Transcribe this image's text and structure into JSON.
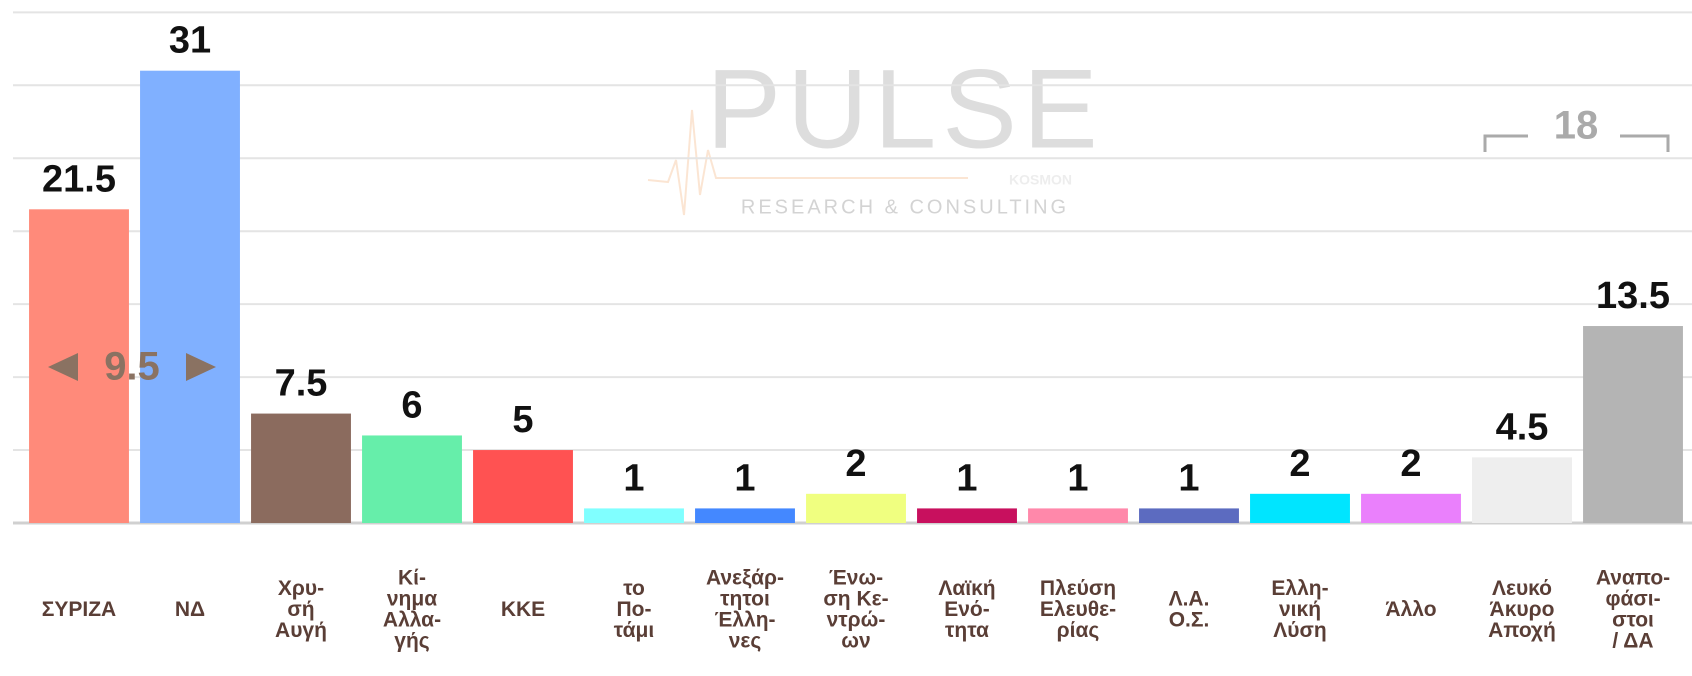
{
  "chart_data": {
    "type": "bar",
    "categories": [
      "ΣΥΡΙΖΑ",
      "ΝΔ",
      "Χρυ-\nσή\nΑυγή",
      "Κί-\nνημα\nΑλλα-\nγής",
      "ΚΚΕ",
      "το\nΠο-\nτάμι",
      "Ανεξάρ-\nτητοι\nΈλλη-\nνες",
      "Ένω-\nση Κε-\nντρώ-\nων",
      "Λαϊκή\nΕνό-\nτητα",
      "Πλεύση\nΕλευθε-\nρίας",
      "Λ.Α.\nΟ.Σ.",
      "Ελλη-\nνική\nΛύση",
      "Άλλο",
      "Λευκό\nΆκυρο\nΑποχή",
      "Αναπο-\nφάσι-\nστοι\n/ ΔΑ"
    ],
    "values": [
      21.5,
      31,
      7.5,
      6,
      5,
      1,
      1,
      2,
      1,
      1,
      1,
      2,
      2,
      4.5,
      13.5
    ],
    "colors": [
      "#ff8a7a",
      "#80b0ff",
      "#8b6b5e",
      "#66eeaa",
      "#ff5252",
      "#80ffff",
      "#4488ff",
      "#f0ff80",
      "#c8105e",
      "#ff88aa",
      "#5c6bc0",
      "#00e5ff",
      "#ea80fc",
      "#eeeeee",
      "#b4b4b4"
    ],
    "ylim": [
      0,
      35.4
    ],
    "yticks": [
      0,
      5,
      10,
      15,
      20,
      25,
      30,
      35
    ],
    "grid": true,
    "annotations": [
      {
        "text": "9.5"
      },
      {
        "text": "18"
      }
    ],
    "watermark": {
      "brand": "PULSE",
      "tagline": "RESEARCH & CONSULTING",
      "partner": "KOSMON"
    }
  }
}
